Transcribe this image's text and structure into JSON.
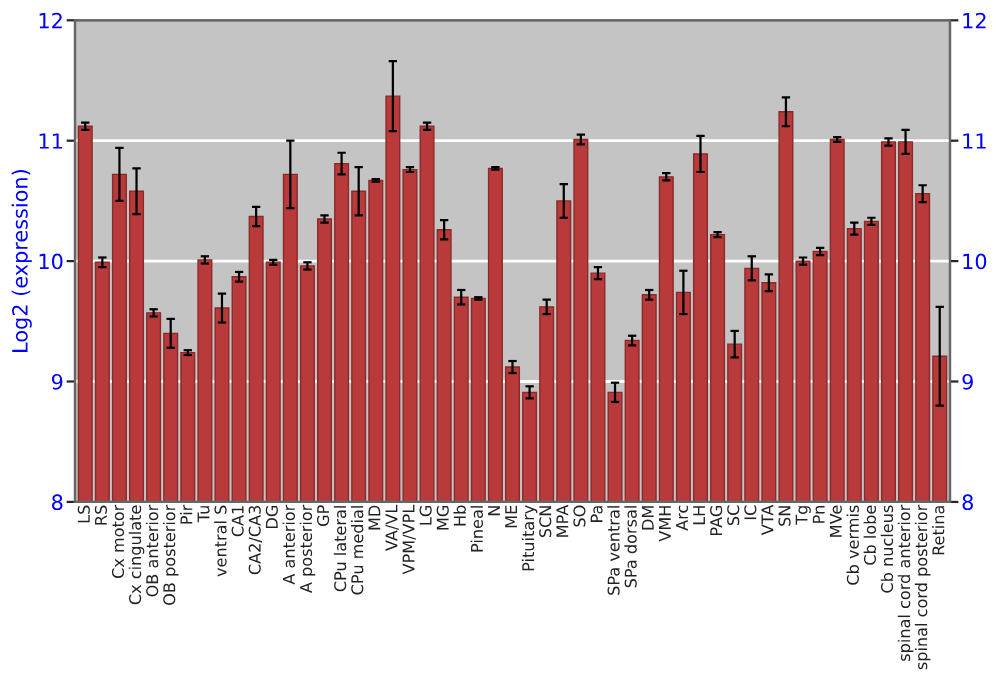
{
  "chart_data": {
    "type": "bar",
    "ylabel": "Log2 (expression)",
    "categories": [
      "LS",
      "RS",
      "Cx motor",
      "Cx cingulate",
      "OB anterior",
      "OB posterior",
      "Pir",
      "Tu",
      "ventral S",
      "CA1",
      "CA2/CA3",
      "DG",
      "A anterior",
      "A posterior",
      "GP",
      "CPu lateral",
      "CPu medial",
      "MD",
      "VA/VL",
      "VPM/VPL",
      "LG",
      "MG",
      "Hb",
      "Pineal",
      "N",
      "ME",
      "Pituitary",
      "SCN",
      "MPA",
      "SO",
      "Pa",
      "SPa ventral",
      "SPa dorsal",
      "DM",
      "VMH",
      "Arc",
      "LH",
      "PAG",
      "SC",
      "IC",
      "VTA",
      "SN",
      "Tg",
      "Pn",
      "MVe",
      "Cb vermis",
      "Cb lobe",
      "Cb nucleus",
      "spinal cord anterior",
      "spinal cord posterior",
      "Retina"
    ],
    "series": [
      {
        "color": "#b83a3a",
        "values": [
          11.12,
          9.99,
          10.72,
          10.58,
          9.57,
          9.4,
          9.24,
          10.01,
          9.61,
          9.87,
          10.37,
          9.99,
          10.72,
          9.96,
          10.35,
          10.81,
          10.58,
          10.67,
          11.37,
          10.76,
          11.12,
          10.26,
          9.7,
          9.69,
          10.77,
          9.12,
          8.91,
          9.62,
          10.5,
          11.01,
          9.9,
          8.91,
          9.34,
          9.72,
          10.7,
          9.74,
          10.89,
          10.22,
          9.31,
          9.94,
          9.82,
          11.24,
          10.0,
          10.08,
          11.01,
          10.27,
          10.33,
          10.99,
          10.99,
          10.56,
          9.21
        ],
        "errors": [
          0.03,
          0.04,
          0.22,
          0.19,
          0.03,
          0.12,
          0.02,
          0.03,
          0.12,
          0.04,
          0.08,
          0.02,
          0.28,
          0.03,
          0.03,
          0.09,
          0.2,
          0.01,
          0.29,
          0.02,
          0.03,
          0.08,
          0.06,
          0.01,
          0.01,
          0.05,
          0.05,
          0.06,
          0.14,
          0.04,
          0.05,
          0.08,
          0.04,
          0.04,
          0.03,
          0.18,
          0.15,
          0.02,
          0.11,
          0.1,
          0.07,
          0.12,
          0.03,
          0.03,
          0.02,
          0.05,
          0.03,
          0.03,
          0.1,
          0.07,
          0.41
        ]
      }
    ],
    "ylim": [
      8,
      12
    ],
    "yticks": [
      8,
      9,
      10,
      11,
      12
    ],
    "y2lim": [
      8,
      12
    ],
    "y2ticks": [
      8,
      9,
      10,
      11,
      12
    ],
    "grid": "y"
  }
}
